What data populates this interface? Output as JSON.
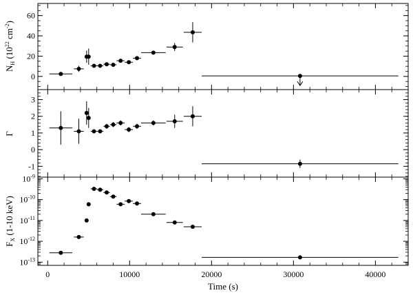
{
  "chart_data": [
    {
      "type": "scatter",
      "panel": "top",
      "ylabel": "N_H (10^22 cm^-2)",
      "ylabel_main": "N",
      "ylabel_sub": "H",
      "ylabel_paren": " (10",
      "ylabel_exp1": "22",
      "ylabel_unit": " cm",
      "ylabel_exp2": "-2",
      "ylabel_close": ")",
      "ylim": [
        -13,
        72
      ],
      "xlim": [
        -1200,
        44000
      ],
      "yticks": [
        0,
        20,
        40,
        60
      ],
      "ytick_labels": [
        "0",
        "20",
        "40",
        "60"
      ],
      "points": [
        {
          "x": 1600,
          "xerr_lo": 1400,
          "xerr_hi": 1400,
          "y": 2.5,
          "yerr_lo": 0,
          "yerr_hi": 0
        },
        {
          "x": 3800,
          "xerr_lo": 600,
          "xerr_hi": 600,
          "y": 7.5,
          "yerr_lo": 3,
          "yerr_hi": 3
        },
        {
          "x": 4750,
          "xerr_lo": 150,
          "xerr_hi": 150,
          "y": 19.5,
          "yerr_lo": 6,
          "yerr_hi": 6
        },
        {
          "x": 5000,
          "xerr_lo": 150,
          "xerr_hi": 150,
          "y": 19.5,
          "yerr_lo": 8,
          "yerr_hi": 8
        },
        {
          "x": 5650,
          "xerr_lo": 400,
          "xerr_hi": 400,
          "y": 10.5,
          "yerr_lo": 1,
          "yerr_hi": 1
        },
        {
          "x": 6400,
          "xerr_lo": 400,
          "xerr_hi": 400,
          "y": 10.5,
          "yerr_lo": 1,
          "yerr_hi": 1
        },
        {
          "x": 7200,
          "xerr_lo": 400,
          "xerr_hi": 400,
          "y": 12,
          "yerr_lo": 1,
          "yerr_hi": 1
        },
        {
          "x": 8000,
          "xerr_lo": 400,
          "xerr_hi": 400,
          "y": 11.5,
          "yerr_lo": 1,
          "yerr_hi": 1
        },
        {
          "x": 8900,
          "xerr_lo": 500,
          "xerr_hi": 500,
          "y": 15.5,
          "yerr_lo": 1,
          "yerr_hi": 1
        },
        {
          "x": 9900,
          "xerr_lo": 500,
          "xerr_hi": 500,
          "y": 14,
          "yerr_lo": 1,
          "yerr_hi": 1
        },
        {
          "x": 10900,
          "xerr_lo": 500,
          "xerr_hi": 500,
          "y": 18,
          "yerr_lo": 1.5,
          "yerr_hi": 1.5
        },
        {
          "x": 12900,
          "xerr_lo": 1500,
          "xerr_hi": 1500,
          "y": 23.5,
          "yerr_lo": 1.5,
          "yerr_hi": 1.5
        },
        {
          "x": 15500,
          "xerr_lo": 1000,
          "xerr_hi": 1000,
          "y": 29,
          "yerr_lo": 4,
          "yerr_hi": 4
        },
        {
          "x": 17700,
          "xerr_lo": 1100,
          "xerr_hi": 1100,
          "y": 43.5,
          "yerr_lo": 10,
          "yerr_hi": 10
        },
        {
          "x": 30800,
          "xerr_lo": 12000,
          "xerr_hi": 12000,
          "y": 0.5,
          "yerr_lo": 0,
          "yerr_hi": 0,
          "upper_limit": true
        }
      ]
    },
    {
      "type": "scatter",
      "panel": "middle",
      "ylabel": "Γ",
      "ylim": [
        -1.65,
        3.6
      ],
      "xlim": [
        -1200,
        44000
      ],
      "yticks": [
        -1,
        0,
        1,
        2,
        3
      ],
      "ytick_labels": [
        "-1",
        "0",
        "1",
        "2",
        "3"
      ],
      "points": [
        {
          "x": 1600,
          "xerr_lo": 1400,
          "xerr_hi": 1400,
          "y": 1.3,
          "yerr_lo": 1.0,
          "yerr_hi": 1.0
        },
        {
          "x": 3800,
          "xerr_lo": 600,
          "xerr_hi": 600,
          "y": 1.1,
          "yerr_lo": 0.75,
          "yerr_hi": 0.75
        },
        {
          "x": 4750,
          "xerr_lo": 150,
          "xerr_hi": 150,
          "y": 2.2,
          "yerr_lo": 0.7,
          "yerr_hi": 0.7
        },
        {
          "x": 5000,
          "xerr_lo": 150,
          "xerr_hi": 150,
          "y": 1.9,
          "yerr_lo": 0.6,
          "yerr_hi": 0.6
        },
        {
          "x": 5650,
          "xerr_lo": 400,
          "xerr_hi": 400,
          "y": 1.1,
          "yerr_lo": 0.1,
          "yerr_hi": 0.1
        },
        {
          "x": 6400,
          "xerr_lo": 400,
          "xerr_hi": 400,
          "y": 1.1,
          "yerr_lo": 0.1,
          "yerr_hi": 0.1
        },
        {
          "x": 7200,
          "xerr_lo": 400,
          "xerr_hi": 400,
          "y": 1.4,
          "yerr_lo": 0.15,
          "yerr_hi": 0.15
        },
        {
          "x": 8000,
          "xerr_lo": 400,
          "xerr_hi": 400,
          "y": 1.5,
          "yerr_lo": 0.15,
          "yerr_hi": 0.15
        },
        {
          "x": 8900,
          "xerr_lo": 500,
          "xerr_hi": 500,
          "y": 1.6,
          "yerr_lo": 0.15,
          "yerr_hi": 0.15
        },
        {
          "x": 9900,
          "xerr_lo": 500,
          "xerr_hi": 500,
          "y": 1.2,
          "yerr_lo": 0.15,
          "yerr_hi": 0.15
        },
        {
          "x": 10900,
          "xerr_lo": 500,
          "xerr_hi": 500,
          "y": 1.4,
          "yerr_lo": 0.15,
          "yerr_hi": 0.15
        },
        {
          "x": 12900,
          "xerr_lo": 1500,
          "xerr_hi": 1500,
          "y": 1.6,
          "yerr_lo": 0.15,
          "yerr_hi": 0.15
        },
        {
          "x": 15500,
          "xerr_lo": 1000,
          "xerr_hi": 1000,
          "y": 1.7,
          "yerr_lo": 0.4,
          "yerr_hi": 0.4
        },
        {
          "x": 17700,
          "xerr_lo": 1100,
          "xerr_hi": 1100,
          "y": 2.0,
          "yerr_lo": 0.6,
          "yerr_hi": 0.6
        },
        {
          "x": 30800,
          "xerr_lo": 12000,
          "xerr_hi": 12000,
          "y": -0.85,
          "yerr_lo": 0.25,
          "yerr_hi": 0.25
        }
      ]
    },
    {
      "type": "scatter",
      "panel": "bottom",
      "ylabel": "F_X (1-10 keV)",
      "ylabel_main": "F",
      "ylabel_sub": "X",
      "ylabel_rest": " (1-10 keV)",
      "yscale": "log",
      "ylim": [
        7e-14,
        1.2e-09
      ],
      "xlim": [
        -1200,
        44000
      ],
      "yticks": [
        1e-13,
        1e-12,
        1e-11,
        1e-10,
        1e-09
      ],
      "ytick_labels": [
        {
          "base": "10",
          "exp": "-13"
        },
        {
          "base": "10",
          "exp": "-12"
        },
        {
          "base": "10",
          "exp": "-11"
        },
        {
          "base": "10",
          "exp": "-10"
        },
        {
          "base": "10",
          "exp": "-9"
        }
      ],
      "xlabel": "Time (s)",
      "xticks": [
        0,
        10000,
        20000,
        30000,
        40000
      ],
      "xtick_labels": [
        "0",
        "10000",
        "20000",
        "30000",
        "40000"
      ],
      "points": [
        {
          "x": 1600,
          "xerr_lo": 1400,
          "xerr_hi": 1400,
          "y": 2.8e-13
        },
        {
          "x": 3800,
          "xerr_lo": 600,
          "xerr_hi": 600,
          "y": 1.6e-12
        },
        {
          "x": 4750,
          "xerr_lo": 0,
          "xerr_hi": 0,
          "y": 1e-11
        },
        {
          "x": 5000,
          "xerr_lo": 0,
          "xerr_hi": 0,
          "y": 6e-11
        },
        {
          "x": 5650,
          "xerr_lo": 400,
          "xerr_hi": 400,
          "y": 3.3e-10
        },
        {
          "x": 6400,
          "xerr_lo": 400,
          "xerr_hi": 400,
          "y": 3e-10
        },
        {
          "x": 7200,
          "xerr_lo": 400,
          "xerr_hi": 400,
          "y": 2.2e-10
        },
        {
          "x": 8000,
          "xerr_lo": 400,
          "xerr_hi": 400,
          "y": 1.4e-10
        },
        {
          "x": 8900,
          "xerr_lo": 500,
          "xerr_hi": 500,
          "y": 6e-11
        },
        {
          "x": 9900,
          "xerr_lo": 500,
          "xerr_hi": 500,
          "y": 8.5e-11
        },
        {
          "x": 10900,
          "xerr_lo": 500,
          "xerr_hi": 500,
          "y": 6.5e-11
        },
        {
          "x": 12900,
          "xerr_lo": 1500,
          "xerr_hi": 1500,
          "y": 2e-11
        },
        {
          "x": 15500,
          "xerr_lo": 1000,
          "xerr_hi": 1000,
          "y": 8e-12
        },
        {
          "x": 17700,
          "xerr_lo": 1100,
          "xerr_hi": 1100,
          "y": 5e-12
        },
        {
          "x": 30800,
          "xerr_lo": 12000,
          "xerr_hi": 12000,
          "y": 1.7e-13
        }
      ]
    }
  ]
}
